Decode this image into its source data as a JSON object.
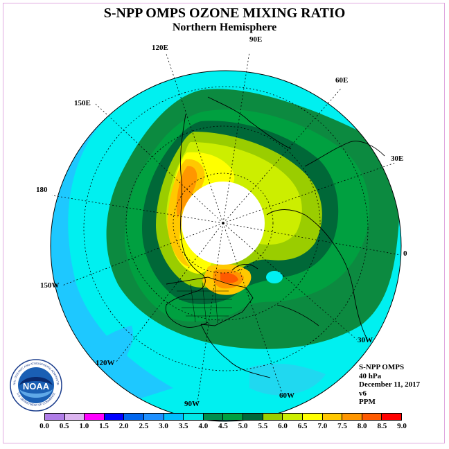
{
  "header": {
    "title": "S-NPP OMPS OZONE MIXING RATIO",
    "subtitle": "Northern Hemisphere"
  },
  "map": {
    "projection": "north polar stereographic",
    "longitude_labels": [
      "120E",
      "90E",
      "60E",
      "30E",
      "0",
      "30W",
      "60W",
      "90W",
      "120W",
      "150W",
      "180",
      "150E"
    ],
    "polar_night_no_data_color": "#ffffff"
  },
  "info": {
    "instrument": "S-NPP OMPS",
    "level": "40 hPa",
    "date": "December 11, 2017",
    "version": "v6",
    "units": "PPM"
  },
  "colorbar": {
    "ticks": [
      "0.0",
      "0.5",
      "1.0",
      "1.5",
      "2.0",
      "2.5",
      "3.0",
      "3.5",
      "4.0",
      "4.5",
      "5.0",
      "5.5",
      "6.0",
      "6.5",
      "7.0",
      "7.5",
      "8.0",
      "8.5",
      "9.0"
    ],
    "colors": [
      "#b07de8",
      "#dcb4f0",
      "#ff00ff",
      "#0000ff",
      "#0066ee",
      "#1e90ff",
      "#00bfff",
      "#00e8e8",
      "#008f4c",
      "#00a040",
      "#006838",
      "#9acd00",
      "#ccee00",
      "#ffff00",
      "#ffc800",
      "#ff9600",
      "#ff5a00",
      "#ff0000",
      "#8b4513"
    ]
  },
  "logo": {
    "text": "NOAA",
    "ring_text": "NATIONAL OCEANIC AND ATMOSPHERIC ADMINISTRATION",
    "ring_text_bottom": "U.S. DEPARTMENT OF COMMERCE"
  }
}
